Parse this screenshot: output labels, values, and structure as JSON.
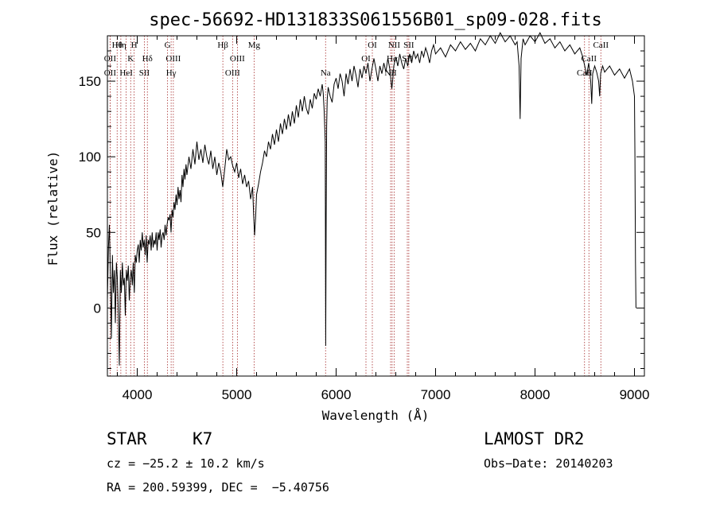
{
  "chart_data": {
    "type": "line",
    "title": "spec-56692-HD131833S061556B01_sp09-028.fits",
    "xlabel": "Wavelength (Å)",
    "ylabel": "Flux (relative)",
    "xlim": [
      3700,
      9100
    ],
    "ylim": [
      -45,
      180
    ],
    "xticks": [
      4000,
      5000,
      6000,
      7000,
      8000,
      9000
    ],
    "yticks": [
      0,
      50,
      100,
      150
    ],
    "grid": false,
    "series": [
      {
        "points": [
          [
            3700,
            5
          ],
          [
            3710,
            40
          ],
          [
            3720,
            55
          ],
          [
            3730,
            20
          ],
          [
            3740,
            -20
          ],
          [
            3750,
            35
          ],
          [
            3760,
            10
          ],
          [
            3770,
            25
          ],
          [
            3780,
            -10
          ],
          [
            3790,
            30
          ],
          [
            3800,
            20
          ],
          [
            3810,
            -5
          ],
          [
            3820,
            -38
          ],
          [
            3830,
            25
          ],
          [
            3840,
            10
          ],
          [
            3850,
            30
          ],
          [
            3860,
            15
          ],
          [
            3870,
            20
          ],
          [
            3880,
            -5
          ],
          [
            3890,
            25
          ],
          [
            3900,
            18
          ],
          [
            3910,
            28
          ],
          [
            3920,
            5
          ],
          [
            3930,
            20
          ],
          [
            3940,
            25
          ],
          [
            3950,
            15
          ],
          [
            3960,
            30
          ],
          [
            3970,
            10
          ],
          [
            3980,
            35
          ],
          [
            3990,
            30
          ],
          [
            4000,
            38
          ],
          [
            4010,
            42
          ],
          [
            4020,
            30
          ],
          [
            4030,
            45
          ],
          [
            4040,
            38
          ],
          [
            4050,
            50
          ],
          [
            4060,
            40
          ],
          [
            4070,
            45
          ],
          [
            4080,
            35
          ],
          [
            4090,
            48
          ],
          [
            4100,
            30
          ],
          [
            4110,
            45
          ],
          [
            4120,
            42
          ],
          [
            4130,
            48
          ],
          [
            4140,
            38
          ],
          [
            4150,
            50
          ],
          [
            4160,
            40
          ],
          [
            4170,
            45
          ],
          [
            4180,
            42
          ],
          [
            4190,
            50
          ],
          [
            4200,
            38
          ],
          [
            4210,
            50
          ],
          [
            4220,
            45
          ],
          [
            4230,
            52
          ],
          [
            4240,
            40
          ],
          [
            4250,
            48
          ],
          [
            4260,
            50
          ],
          [
            4270,
            45
          ],
          [
            4280,
            55
          ],
          [
            4290,
            48
          ],
          [
            4300,
            55
          ],
          [
            4310,
            60
          ],
          [
            4320,
            58
          ],
          [
            4330,
            62
          ],
          [
            4340,
            50
          ],
          [
            4350,
            65
          ],
          [
            4360,
            60
          ],
          [
            4370,
            70
          ],
          [
            4380,
            65
          ],
          [
            4390,
            75
          ],
          [
            4400,
            68
          ],
          [
            4410,
            80
          ],
          [
            4420,
            72
          ],
          [
            4430,
            78
          ],
          [
            4440,
            70
          ],
          [
            4450,
            88
          ],
          [
            4460,
            80
          ],
          [
            4470,
            92
          ],
          [
            4480,
            85
          ],
          [
            4490,
            95
          ],
          [
            4500,
            88
          ],
          [
            4520,
            100
          ],
          [
            4540,
            92
          ],
          [
            4560,
            105
          ],
          [
            4580,
            95
          ],
          [
            4600,
            110
          ],
          [
            4620,
            98
          ],
          [
            4640,
            105
          ],
          [
            4660,
            96
          ],
          [
            4680,
            108
          ],
          [
            4700,
            100
          ],
          [
            4720,
            95
          ],
          [
            4740,
            104
          ],
          [
            4760,
            92
          ],
          [
            4780,
            100
          ],
          [
            4800,
            88
          ],
          [
            4820,
            96
          ],
          [
            4840,
            90
          ],
          [
            4860,
            80
          ],
          [
            4880,
            92
          ],
          [
            4900,
            105
          ],
          [
            4920,
            98
          ],
          [
            4940,
            100
          ],
          [
            4960,
            94
          ],
          [
            4980,
            90
          ],
          [
            5000,
            96
          ],
          [
            5020,
            86
          ],
          [
            5040,
            92
          ],
          [
            5060,
            82
          ],
          [
            5080,
            88
          ],
          [
            5100,
            80
          ],
          [
            5120,
            84
          ],
          [
            5140,
            72
          ],
          [
            5160,
            80
          ],
          [
            5170,
            62
          ],
          [
            5180,
            48
          ],
          [
            5190,
            60
          ],
          [
            5200,
            75
          ],
          [
            5220,
            82
          ],
          [
            5240,
            90
          ],
          [
            5260,
            96
          ],
          [
            5280,
            104
          ],
          [
            5300,
            100
          ],
          [
            5320,
            110
          ],
          [
            5340,
            105
          ],
          [
            5360,
            115
          ],
          [
            5380,
            108
          ],
          [
            5400,
            118
          ],
          [
            5420,
            110
          ],
          [
            5440,
            122
          ],
          [
            5460,
            115
          ],
          [
            5480,
            125
          ],
          [
            5500,
            118
          ],
          [
            5520,
            128
          ],
          [
            5540,
            120
          ],
          [
            5560,
            130
          ],
          [
            5580,
            122
          ],
          [
            5600,
            134
          ],
          [
            5620,
            126
          ],
          [
            5640,
            138
          ],
          [
            5660,
            130
          ],
          [
            5680,
            140
          ],
          [
            5700,
            132
          ],
          [
            5720,
            128
          ],
          [
            5740,
            138
          ],
          [
            5760,
            132
          ],
          [
            5780,
            142
          ],
          [
            5800,
            138
          ],
          [
            5820,
            145
          ],
          [
            5840,
            140
          ],
          [
            5860,
            148
          ],
          [
            5870,
            142
          ],
          [
            5880,
            130
          ],
          [
            5890,
            110
          ],
          [
            5895,
            -25
          ],
          [
            5900,
            60
          ],
          [
            5905,
            120
          ],
          [
            5910,
            138
          ],
          [
            5920,
            146
          ],
          [
            5940,
            140
          ],
          [
            5960,
            136
          ],
          [
            5980,
            148
          ],
          [
            6000,
            152
          ],
          [
            6020,
            145
          ],
          [
            6040,
            155
          ],
          [
            6060,
            150
          ],
          [
            6080,
            140
          ],
          [
            6100,
            155
          ],
          [
            6120,
            148
          ],
          [
            6140,
            158
          ],
          [
            6160,
            150
          ],
          [
            6180,
            160
          ],
          [
            6200,
            154
          ],
          [
            6220,
            146
          ],
          [
            6240,
            158
          ],
          [
            6260,
            152
          ],
          [
            6280,
            160
          ],
          [
            6300,
            155
          ],
          [
            6320,
            162
          ],
          [
            6340,
            150
          ],
          [
            6360,
            158
          ],
          [
            6380,
            165
          ],
          [
            6400,
            158
          ],
          [
            6420,
            150
          ],
          [
            6440,
            160
          ],
          [
            6460,
            155
          ],
          [
            6480,
            162
          ],
          [
            6500,
            156
          ],
          [
            6520,
            165
          ],
          [
            6540,
            158
          ],
          [
            6560,
            145
          ],
          [
            6570,
            152
          ],
          [
            6580,
            160
          ],
          [
            6600,
            166
          ],
          [
            6620,
            160
          ],
          [
            6640,
            168
          ],
          [
            6660,
            162
          ],
          [
            6680,
            158
          ],
          [
            6700,
            165
          ],
          [
            6720,
            160
          ],
          [
            6740,
            168
          ],
          [
            6760,
            162
          ],
          [
            6780,
            170
          ],
          [
            6800,
            165
          ],
          [
            6820,
            168
          ],
          [
            6840,
            162
          ],
          [
            6860,
            170
          ],
          [
            6880,
            166
          ],
          [
            6900,
            172
          ],
          [
            6920,
            168
          ],
          [
            6940,
            162
          ],
          [
            6960,
            170
          ],
          [
            6980,
            174
          ],
          [
            7000,
            168
          ],
          [
            7050,
            172
          ],
          [
            7100,
            166
          ],
          [
            7150,
            174
          ],
          [
            7200,
            170
          ],
          [
            7250,
            176
          ],
          [
            7300,
            171
          ],
          [
            7350,
            175
          ],
          [
            7400,
            170
          ],
          [
            7450,
            178
          ],
          [
            7500,
            174
          ],
          [
            7550,
            180
          ],
          [
            7600,
            175
          ],
          [
            7650,
            182
          ],
          [
            7700,
            176
          ],
          [
            7750,
            180
          ],
          [
            7800,
            174
          ],
          [
            7820,
            176
          ],
          [
            7840,
            160
          ],
          [
            7850,
            125
          ],
          [
            7860,
            165
          ],
          [
            7880,
            178
          ],
          [
            7900,
            174
          ],
          [
            7950,
            180
          ],
          [
            8000,
            176
          ],
          [
            8050,
            182
          ],
          [
            8100,
            175
          ],
          [
            8150,
            178
          ],
          [
            8200,
            172
          ],
          [
            8250,
            176
          ],
          [
            8300,
            170
          ],
          [
            8350,
            174
          ],
          [
            8400,
            168
          ],
          [
            8450,
            172
          ],
          [
            8480,
            166
          ],
          [
            8500,
            160
          ],
          [
            8520,
            154
          ],
          [
            8540,
            162
          ],
          [
            8560,
            150
          ],
          [
            8570,
            135
          ],
          [
            8580,
            155
          ],
          [
            8600,
            160
          ],
          [
            8620,
            156
          ],
          [
            8640,
            150
          ],
          [
            8650,
            140
          ],
          [
            8660,
            155
          ],
          [
            8680,
            160
          ],
          [
            8700,
            156
          ],
          [
            8750,
            160
          ],
          [
            8800,
            154
          ],
          [
            8850,
            158
          ],
          [
            8900,
            152
          ],
          [
            8950,
            158
          ],
          [
            8980,
            150
          ],
          [
            9000,
            140
          ],
          [
            9005,
            100
          ],
          [
            9010,
            30
          ],
          [
            9015,
            0
          ]
        ]
      }
    ],
    "lines": [
      {
        "wl": 3727,
        "label": "OII",
        "row": 2
      },
      {
        "wl": 3727,
        "label": "OII",
        "row": 3
      },
      {
        "wl": 3798,
        "label": "Hθ",
        "row": 1
      },
      {
        "wl": 3835,
        "label": "Hη",
        "row": 1
      },
      {
        "wl": 3889,
        "label": "HeI",
        "row": 3
      },
      {
        "wl": 3934,
        "label": "K",
        "row": 2
      },
      {
        "wl": 3969,
        "label": "H",
        "row": 1
      },
      {
        "wl": 4072,
        "label": "SII",
        "row": 3
      },
      {
        "wl": 4102,
        "label": "Hδ",
        "row": 2
      },
      {
        "wl": 4305,
        "label": "G",
        "row": 1
      },
      {
        "wl": 4341,
        "label": "Hγ",
        "row": 3
      },
      {
        "wl": 4363,
        "label": "OIII",
        "row": 2
      },
      {
        "wl": 4861,
        "label": "Hβ",
        "row": 1
      },
      {
        "wl": 4959,
        "label": "OIII",
        "row": 3
      },
      {
        "wl": 5007,
        "label": "OIII",
        "row": 2
      },
      {
        "wl": 5175,
        "label": "Mg",
        "row": 1
      },
      {
        "wl": 5894,
        "label": "Na",
        "row": 3
      },
      {
        "wl": 6300,
        "label": "OI",
        "row": 2
      },
      {
        "wl": 6364,
        "label": "OI",
        "row": 1
      },
      {
        "wl": 6548,
        "label": "NII",
        "row": 3
      },
      {
        "wl": 6563,
        "label": "Hα",
        "row": 2
      },
      {
        "wl": 6583,
        "label": "NII",
        "row": 1
      },
      {
        "wl": 6716,
        "label": "SII",
        "row": 2
      },
      {
        "wl": 6731,
        "label": "SII",
        "row": 1
      },
      {
        "wl": 8498,
        "label": "CaII",
        "row": 3
      },
      {
        "wl": 8542,
        "label": "CaII",
        "row": 2
      },
      {
        "wl": 8662,
        "label": "CaII",
        "row": 1
      }
    ]
  },
  "info": {
    "object_type": "STAR",
    "subclass": "K7",
    "survey": "LAMOST DR2",
    "cz": "cz = −25.2 ± 10.2 km/s",
    "obs_date": "Obs−Date: 20140203",
    "coords": "RA = 200.59399, DEC =  −5.40756"
  },
  "colors": {
    "spectrum": "#000000",
    "line_marker": "#a52a2a"
  }
}
